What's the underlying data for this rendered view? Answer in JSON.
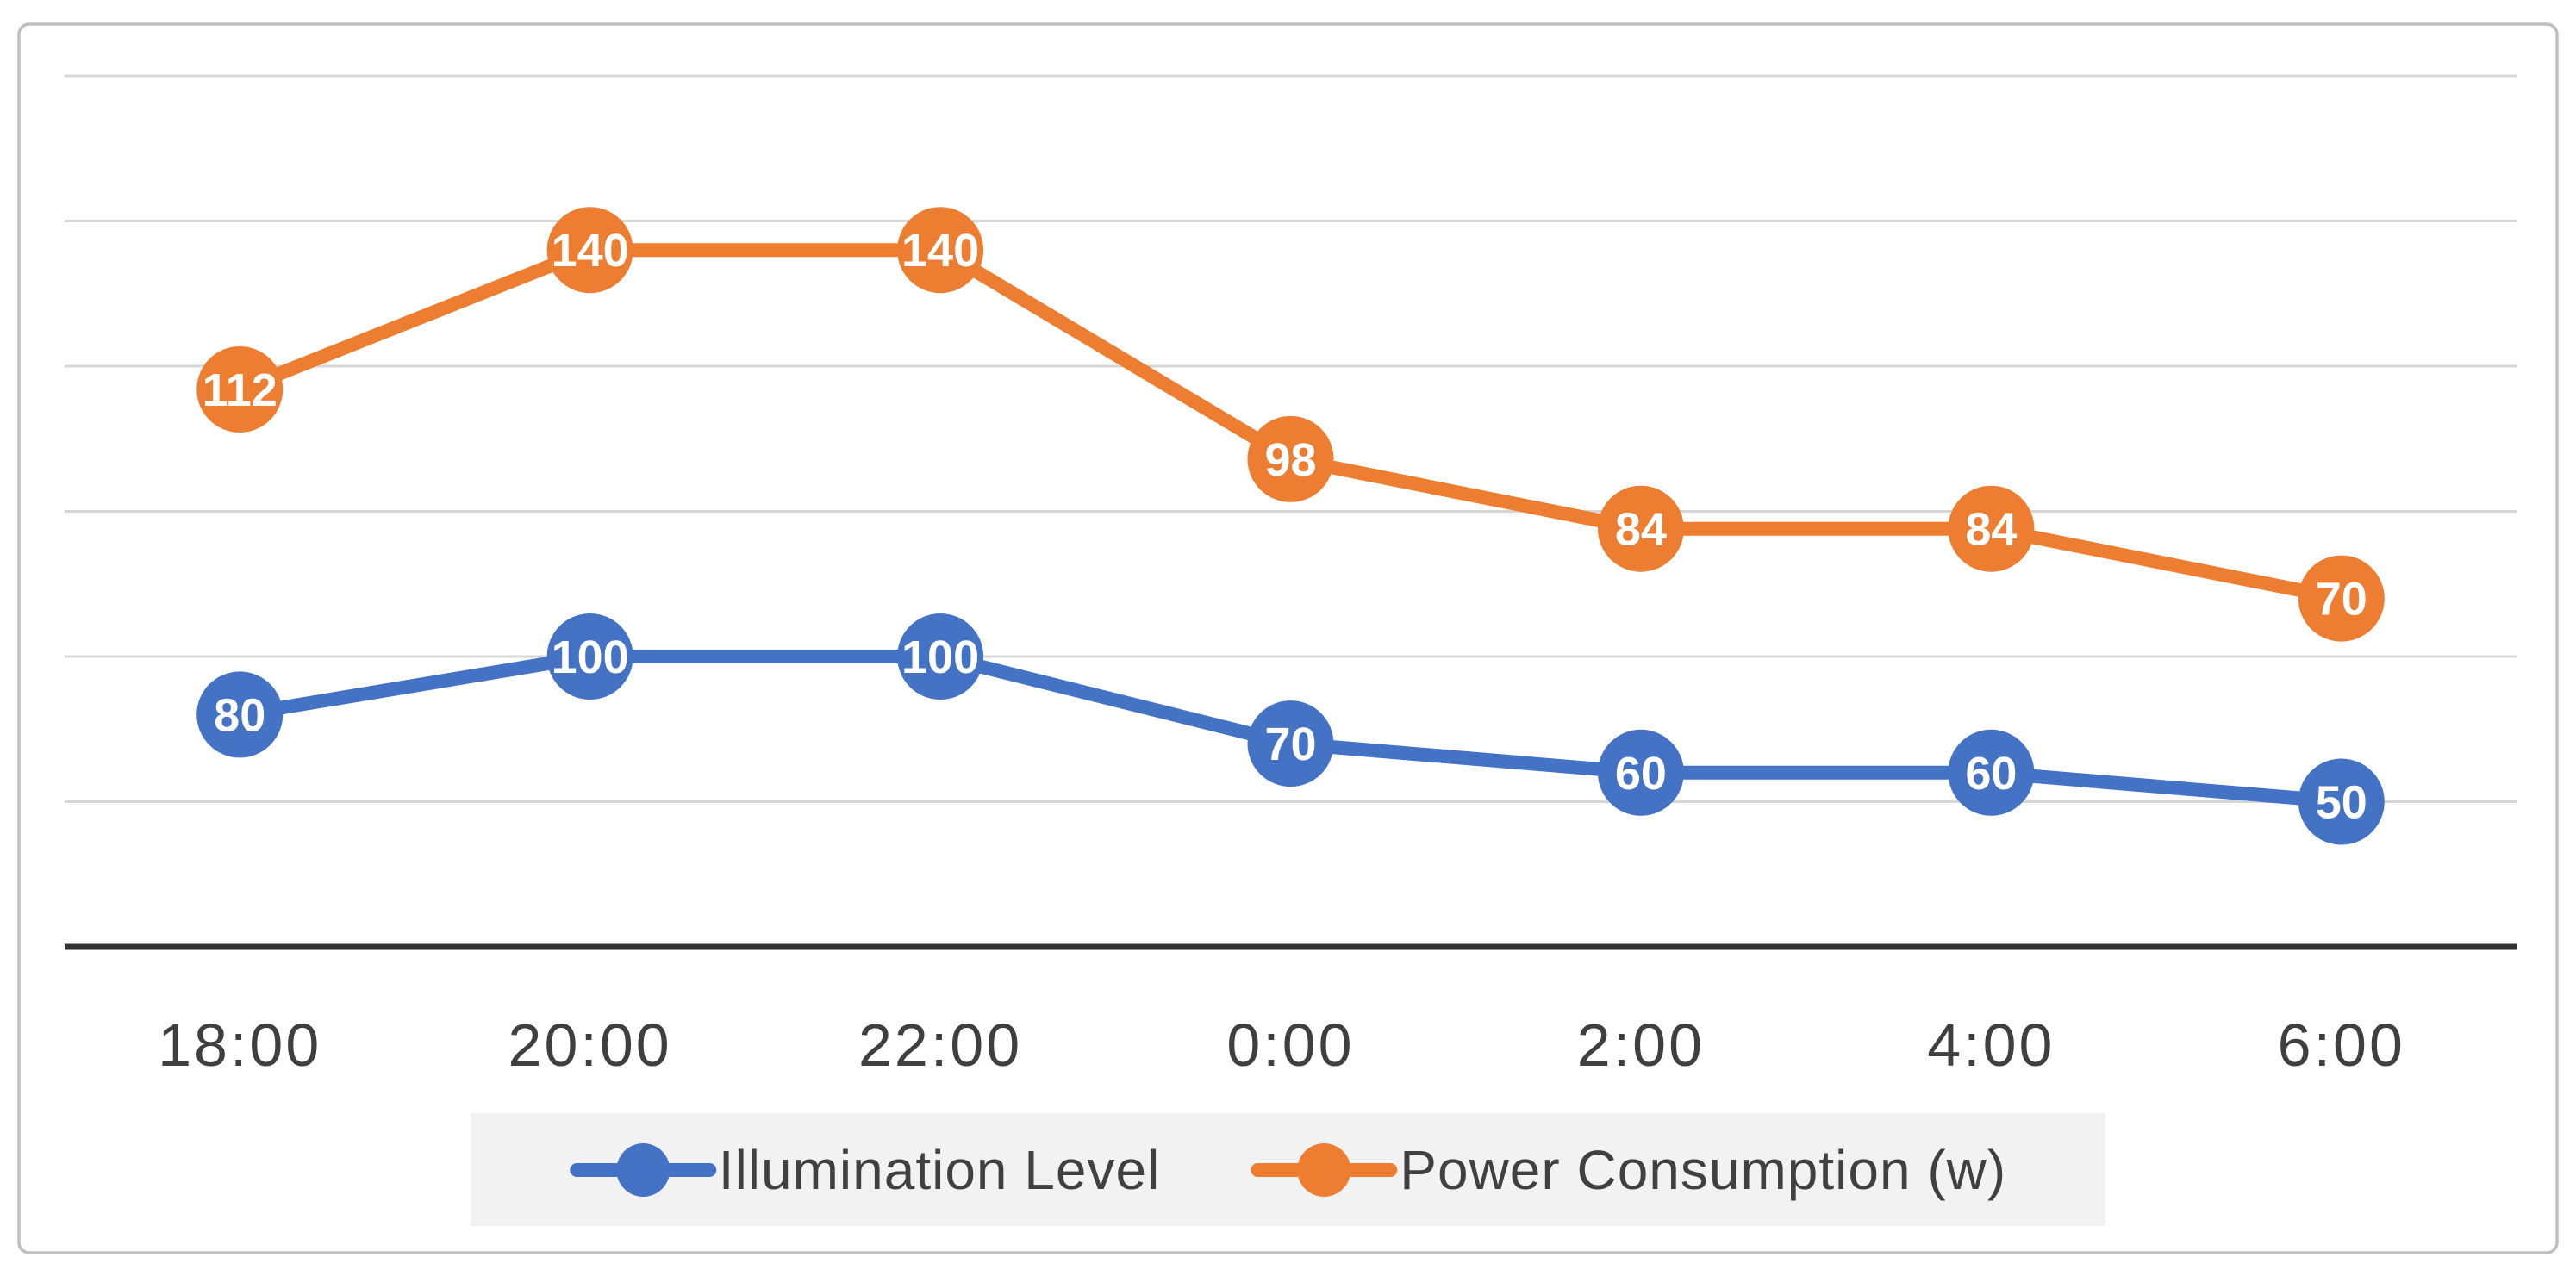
{
  "chart_data": {
    "type": "line",
    "title": "",
    "xlabel": "",
    "ylabel": "",
    "categories": [
      "18:00",
      "20:00",
      "22:00",
      "0:00",
      "2:00",
      "4:00",
      "6:00"
    ],
    "series": [
      {
        "name": "Illumination Level",
        "values": [
          80,
          100,
          100,
          70,
          60,
          60,
          50
        ],
        "color": "#4472C4",
        "axis": "primary",
        "marker": "circle",
        "data_labels_visible": true
      },
      {
        "name": "Power Consumption (w)",
        "values": [
          112,
          140,
          140,
          98,
          84,
          84,
          70
        ],
        "color": "#ED7D31",
        "axis": "secondary",
        "marker": "circle",
        "data_labels_visible": true
      }
    ],
    "primary_axis": {
      "min": 0,
      "max": 300,
      "major_unit": 50,
      "tick_labels_visible": false
    },
    "secondary_axis": {
      "min": 0,
      "max": 175,
      "tick_labels_visible": false
    },
    "grid": true,
    "legend_position": "bottom",
    "data_label_style": "white-bold-inside-marker"
  },
  "colors": {
    "series_blue": "#4472C4",
    "series_orange": "#ED7D31",
    "gridline": "#D6D6D6",
    "axis_line": "#333333",
    "chart_border": "#BFBFBF",
    "legend_background": "#F2F2F2",
    "axis_label_text": "#3F3F3F",
    "legend_text": "#404040",
    "data_label_text": "#FFFFFF"
  }
}
